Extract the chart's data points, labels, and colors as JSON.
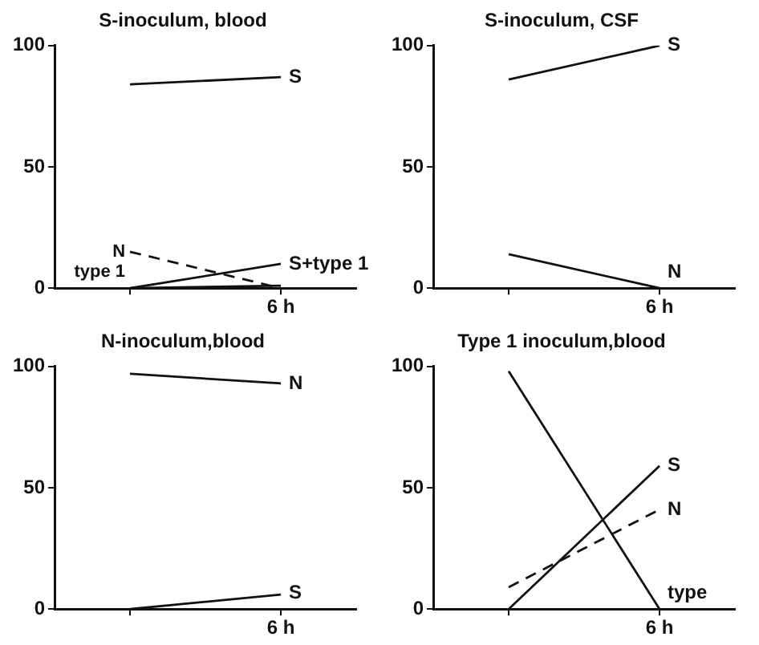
{
  "chart_data": [
    {
      "type": "line",
      "title": "S-inoculum, blood",
      "categories": [
        null,
        "6 h"
      ],
      "ylim": [
        0,
        100
      ],
      "yticks": [
        0,
        50,
        100
      ],
      "grid": false,
      "legend": false,
      "marker": "none",
      "series": [
        {
          "name": "S",
          "color": "#111111",
          "values": [
            84,
            87
          ]
        },
        {
          "name": "S+type 1",
          "color": "#111111",
          "values": [
            0,
            10
          ]
        },
        {
          "name": "N",
          "color": "#111111",
          "values": [
            15,
            0
          ],
          "line_style": "dashed"
        },
        {
          "name": "type 1",
          "color": "#111111",
          "values": [
            0,
            1
          ]
        }
      ]
    },
    {
      "type": "line",
      "title": "S-inoculum, CSF",
      "categories": [
        null,
        "6 h"
      ],
      "ylim": [
        0,
        100
      ],
      "yticks": [
        0,
        50,
        100
      ],
      "grid": false,
      "legend": false,
      "marker": "none",
      "series": [
        {
          "name": "S",
          "color": "#111111",
          "values": [
            86,
            100
          ]
        },
        {
          "name": "N",
          "color": "#111111",
          "values": [
            14,
            0
          ]
        }
      ]
    },
    {
      "type": "line",
      "title": "N-inoculum,blood",
      "categories": [
        null,
        "6 h"
      ],
      "ylim": [
        0,
        100
      ],
      "yticks": [
        0,
        50,
        100
      ],
      "grid": false,
      "legend": false,
      "marker": "none",
      "series": [
        {
          "name": "N",
          "color": "#111111",
          "values": [
            97,
            93
          ]
        },
        {
          "name": "S",
          "color": "#111111",
          "values": [
            0,
            6
          ]
        }
      ]
    },
    {
      "type": "line",
      "title": "Type 1 inoculum,blood",
      "categories": [
        null,
        "6 h"
      ],
      "ylim": [
        0,
        100
      ],
      "yticks": [
        0,
        50,
        100
      ],
      "grid": false,
      "legend": false,
      "marker": "none",
      "series": [
        {
          "name": "type",
          "color": "#111111",
          "values": [
            98,
            0
          ]
        },
        {
          "name": "S",
          "color": "#111111",
          "values": [
            0,
            59
          ]
        },
        {
          "name": "N",
          "color": "#111111",
          "values": [
            9,
            41
          ],
          "line_style": "dashed"
        }
      ]
    }
  ]
}
